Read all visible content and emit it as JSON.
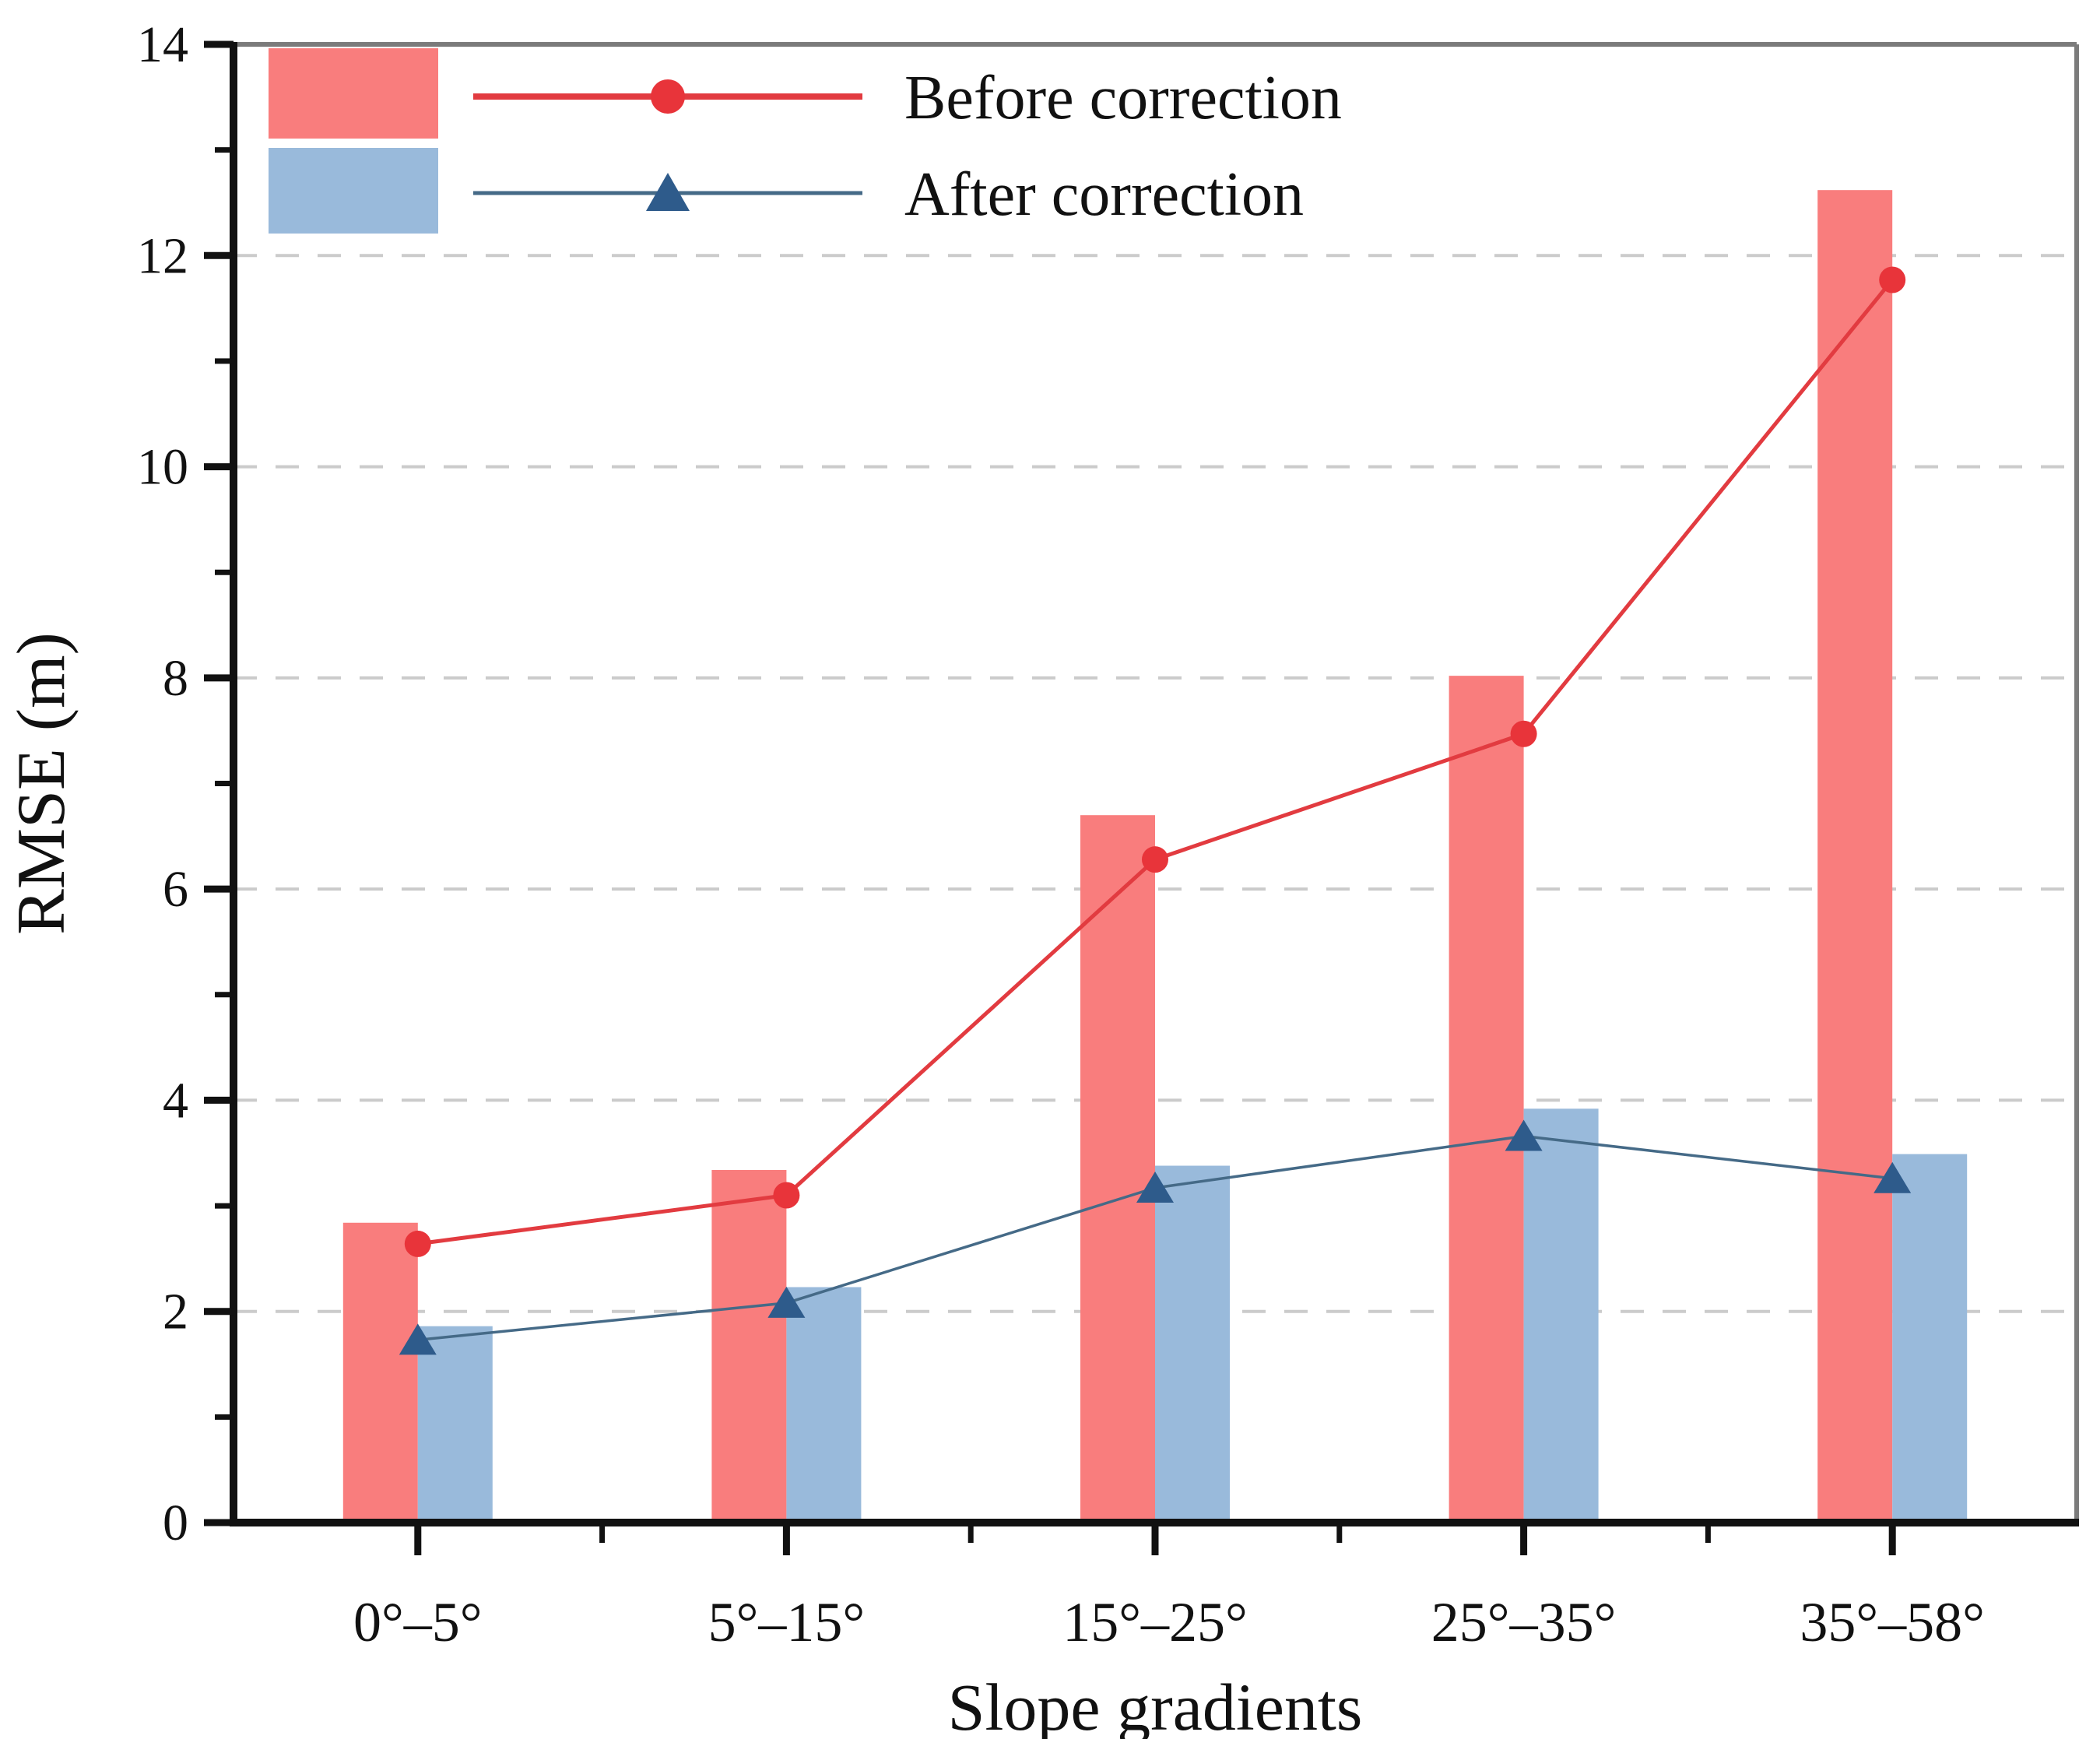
{
  "chart_data": {
    "type": "bar",
    "subtype": "grouped-bars-with-overlaid-lines",
    "title": "",
    "categories": [
      "0°–5°",
      "5°–15°",
      "15°–25°",
      "25°–35°",
      "35°–58°"
    ],
    "series": [
      {
        "name": "Before correction",
        "render": "bar",
        "values": [
          2.84,
          3.34,
          6.7,
          8.02,
          12.62
        ],
        "color": "#F97D7D"
      },
      {
        "name": "After correction",
        "render": "bar",
        "values": [
          1.86,
          2.23,
          3.38,
          3.92,
          3.49
        ],
        "color": "#99BADB"
      },
      {
        "name": "Before correction",
        "render": "line",
        "marker": "circle",
        "values": [
          2.64,
          3.1,
          6.28,
          7.47,
          11.77
        ],
        "color": "#E23B40",
        "marker_color": "#E8343A"
      },
      {
        "name": "After correction",
        "render": "line",
        "marker": "triangle",
        "values": [
          1.73,
          2.08,
          3.17,
          3.66,
          3.26
        ],
        "color": "#456A87",
        "marker_color": "#2E5B8B"
      }
    ],
    "xlabel": "Slope gradients",
    "ylabel": "RMSE (m)",
    "ylim": [
      0,
      14
    ],
    "ytick_step": 2,
    "yticks_minor_step": 1,
    "grid": "horizontal-dashed-at-major-ticks",
    "grid_color": "#CBCBCB",
    "axis_color": "#111111",
    "frame_color": "#7B7B7B",
    "legend_position": "top-left-inside"
  },
  "axes": {
    "ylabel": "RMSE (m)",
    "xlabel": "Slope gradients",
    "yticks": [
      "0",
      "2",
      "4",
      "6",
      "8",
      "10",
      "12",
      "14"
    ]
  },
  "legend": {
    "items": [
      {
        "label": "Before correction",
        "swatch_color": "#F97D7D",
        "line_color": "#E23B40",
        "marker": "circle",
        "marker_color": "#E8343A"
      },
      {
        "label": "After correction",
        "swatch_color": "#99BADB",
        "line_color": "#456A87",
        "marker": "triangle",
        "marker_color": "#2E5B8B"
      }
    ]
  }
}
